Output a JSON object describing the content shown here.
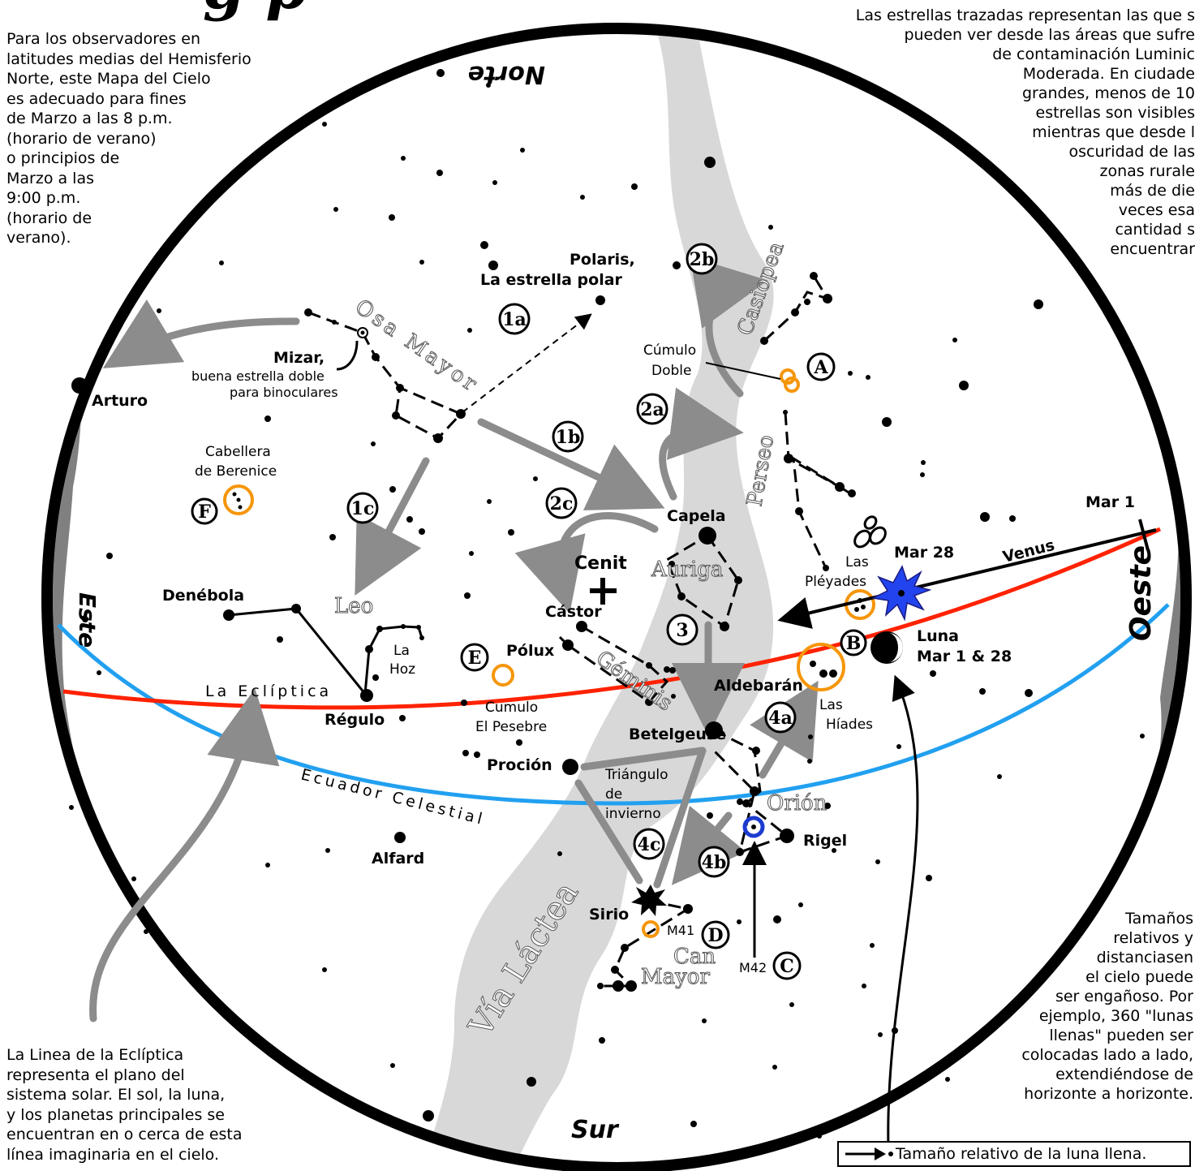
{
  "header": {
    "title_fragment": "g  p",
    "left_note": "Para los observadores en\nlatitudes medias del Hemisferio\nNorte, este Mapa del Cielo\nes adecuado para fines\nde Marzo a las 8 p.m.\n(horario de verano)\no principios de\nMarzo a las\n9:00 p.m.\n(horario de\nverano).",
    "right_note": "Las estrellas trazadas representan las que s\npueden ver desde las áreas que sufre\nde contaminación Luminic\nModerada. En ciudade\ngrandes, menos de 10\nestrellas son visibles\nmientras que desde l\noscuridad de las\nzonas rurale\nmás de die\nveces esa\ncantidad s\nencuentrar"
  },
  "directions": {
    "north": "Norte",
    "south": "Sur",
    "east": "Este",
    "west": "Oeste",
    "zenith": "Cenit"
  },
  "constellations": {
    "osa_mayor": "Osa Mayor",
    "leo": "Leo",
    "casiopea": "Casiopea",
    "perseo": "Perseo",
    "auriga": "Auriga",
    "geminis": "Géminis",
    "orion": "Orión",
    "can_mayor_1": "Can",
    "can_mayor_2": "Mayor",
    "via_lactea": "Vía Láctea"
  },
  "stars": {
    "polaris_1": "Polaris,",
    "polaris_2": "La estrella polar",
    "mizar": "Mizar,",
    "mizar_note_1": "buena estrella doble",
    "mizar_note_2": "para binoculares",
    "arturo": "Arturo",
    "capela": "Capela",
    "castor": "Cástor",
    "polux": "Pólux",
    "denebola": "Denébola",
    "regulo": "Régulo",
    "aldebaran": "Aldebarán",
    "betelgeuse": "Betelgeuse",
    "procion": "Proción",
    "rigel": "Rigel",
    "alfard": "Alfard",
    "sirio": "Sirio"
  },
  "objects": {
    "cumulo_doble_1": "Cúmulo",
    "cumulo_doble_2": "Doble",
    "cabellera_1": "Cabellera",
    "cabellera_2": "de Berenice",
    "pesebre_1": "Cumulo",
    "pesebre_2": "El Pesebre",
    "pleyades_1": "Las",
    "pleyades_2": "Pléyades",
    "hiades_1": "Las",
    "hiades_2": "Híades",
    "hoz_1": "La",
    "hoz_2": "Hoz",
    "triangulo_1": "Triángulo",
    "triangulo_2": "de",
    "triangulo_3": "invierno",
    "m41": "M41",
    "m42": "M42"
  },
  "markers": {
    "1a": "1a",
    "1b": "1b",
    "1c": "1c",
    "2a": "2a",
    "2b": "2b",
    "2c": "2c",
    "3": "3",
    "4a": "4a",
    "4b": "4b",
    "4c": "4c",
    "A": "A",
    "B": "B",
    "C": "C",
    "D": "D",
    "E": "E",
    "F": "F"
  },
  "lines": {
    "ecliptic": "La Eclíptica",
    "equator": "Ecuador Celestial"
  },
  "planets": {
    "mar1": "Mar 1",
    "mar28": "Mar 28",
    "venus": "Venus",
    "luna_1": "Luna",
    "luna_2": "Mar 1 & 28"
  },
  "notes": {
    "ecliptic_note": "La Linea de la Eclíptica\nrepresenta el plano del\nsistema solar. El sol, la luna,\ny los planetas principales se\nencuentran en o cerca de esta\nlínea imaginaria en el cielo.",
    "scale_note": "Tamaños\nrelativos y\ndistanciasen\nel cielo puede\nser engañoso. Por\nejemplo, 360 \"lunas\nllenas\" pueden ser\ncolocadas lado a lado,\nextendiéndose de\nhorizonte a horizonte."
  },
  "legend": {
    "moon_size": "Tamaño relativo de la luna llena."
  },
  "colors": {
    "ecliptic": "#ff2200",
    "equator": "#22a0f0",
    "milky_way": "#d8d8d8",
    "horizon_band": "#808080",
    "arrow": "#8c8c8c",
    "cluster": "#f5960a",
    "nebula": "#1c3cd0",
    "venus_burst": "#2244ee"
  }
}
